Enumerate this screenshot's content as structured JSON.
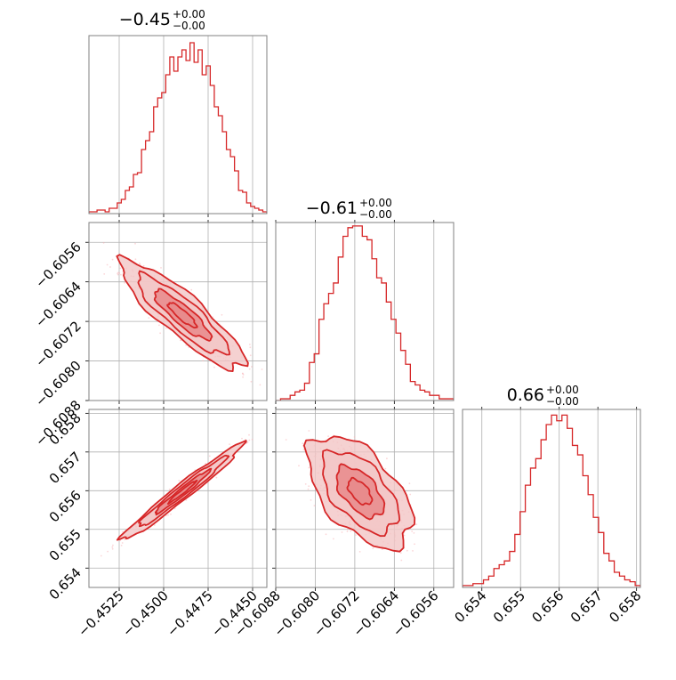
{
  "colors": {
    "accent": "#d62728",
    "fill_light": "#f3c6c6",
    "fill_mid": "#e88a8b",
    "scatter": "#f7b6b9",
    "grid": "#b0b0b0"
  },
  "titles": [
    {
      "main": "−0.45",
      "sup": "+0.00",
      "sub": "−0.00"
    },
    {
      "main": "−0.61",
      "sup": "+0.00",
      "sub": "−0.00"
    },
    {
      "main": "0.66",
      "sup": "+0.00",
      "sub": "−0.00"
    }
  ],
  "chart_data": {
    "type": "corner",
    "grid": true,
    "parameters": [
      {
        "range": [
          -0.4542,
          -0.4442
        ],
        "ticks": [
          -0.4525,
          -0.45,
          -0.4475,
          -0.445
        ],
        "tick_labels": [
          "−0.4525",
          "−0.4500",
          "−0.4475",
          "−0.4450"
        ]
      },
      {
        "range": [
          -0.6088,
          -0.6052
        ],
        "ticks": [
          -0.6088,
          -0.608,
          -0.6072,
          -0.6064,
          -0.6056
        ],
        "tick_labels": [
          "−0.6088",
          "−0.6080",
          "−0.6072",
          "−0.6064",
          "−0.6056"
        ]
      },
      {
        "range": [
          0.6535,
          0.6581
        ],
        "ticks": [
          0.654,
          0.655,
          0.656,
          0.657,
          0.658
        ],
        "tick_labels": [
          "0.654",
          "0.655",
          "0.656",
          "0.657",
          "0.658"
        ]
      }
    ],
    "histograms": [
      {
        "x_range": [
          -0.4542,
          -0.4442
        ],
        "counts": [
          1,
          1,
          2,
          2,
          1,
          3,
          3,
          6,
          8,
          13,
          15,
          22,
          23,
          36,
          41,
          46,
          60,
          65,
          68,
          78,
          88,
          80,
          88,
          92,
          86,
          96,
          85,
          92,
          78,
          83,
          72,
          60,
          55,
          46,
          36,
          32,
          24,
          13,
          12,
          6,
          4,
          3,
          2,
          1
        ],
        "ymax": 100
      },
      {
        "x_range": [
          -0.6088,
          -0.6052
        ],
        "counts": [
          0,
          1,
          1,
          3,
          5,
          6,
          10,
          22,
          27,
          47,
          56,
          62,
          68,
          83,
          95,
          100,
          101,
          101,
          95,
          93,
          82,
          71,
          68,
          57,
          47,
          39,
          29,
          21,
          11,
          9,
          6,
          5,
          3,
          3,
          1,
          1,
          1
        ],
        "ymax": 103
      },
      {
        "x_range": [
          0.6535,
          0.6581
        ],
        "counts": [
          1,
          1,
          2,
          2,
          4,
          6,
          10,
          12,
          14,
          19,
          28,
          40,
          54,
          63,
          68,
          78,
          86,
          91,
          88,
          91,
          84,
          75,
          70,
          59,
          49,
          37,
          29,
          18,
          14,
          8,
          6,
          4,
          3,
          1
        ],
        "ymax": 94
      }
    ],
    "pairs": [
      {
        "row": 1,
        "col": 0,
        "cx": -0.44895,
        "cy": -0.60707,
        "slope": -0.282,
        "sigma_along": 0.00165,
        "sigma_perp": 0.00023,
        "n_points": 500,
        "seed": 11
      },
      {
        "row": 2,
        "col": 0,
        "cx": -0.44895,
        "cy": 0.65597,
        "slope": 0.36,
        "sigma_along": 0.00165,
        "sigma_perp": 0.00011,
        "n_points": 500,
        "seed": 23
      },
      {
        "row": 2,
        "col": 1,
        "cx": -0.6071,
        "cy": 0.65597,
        "sigma_x": 0.00048,
        "sigma_y": 0.00066,
        "rho": -0.55,
        "n_points": 500,
        "seed": 37
      }
    ]
  }
}
